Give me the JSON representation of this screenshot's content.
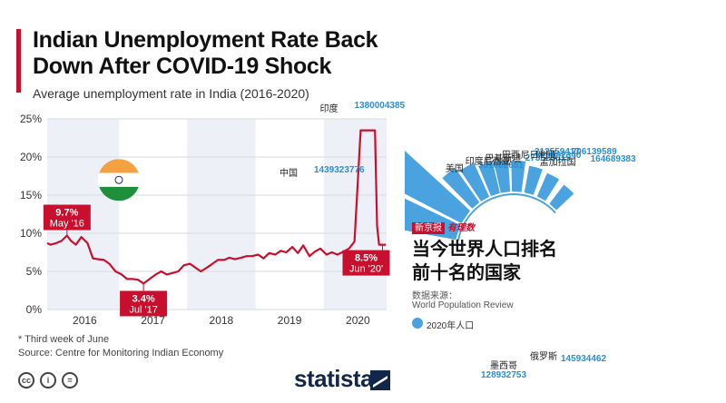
{
  "left_panel": {
    "title": "Indian Unemployment Rate Back Down After COVID-19 Shock",
    "subtitle": "Average unemployment rate in India (2016-2020)",
    "note": "* Third week of June",
    "source": "Source: Centre for Monitoring Indian Economy",
    "license_icons": [
      {
        "name": "cc-icon",
        "glyph": "cc"
      },
      {
        "name": "attribution-icon",
        "glyph": "i"
      },
      {
        "name": "noderivs-icon",
        "glyph": "="
      }
    ],
    "brand": "statista",
    "flag_colors": {
      "saffron": "#f4a142",
      "white": "#ffffff",
      "green": "#1e8f3a",
      "chakra": "#1a2a7a"
    }
  },
  "right_panel": {
    "tag": "新京报",
    "tag_logo": "有理数",
    "headline": "当今世界人口排名前十名的国家",
    "source_label": "数据来源：",
    "source_name": "World Population Review",
    "legend_label": "2020年人口",
    "bar_color": "#4aa3df"
  },
  "chart_data": [
    {
      "type": "line",
      "title": "Indian Unemployment Rate Back Down After COVID-19 Shock",
      "subtitle": "Average unemployment rate in India (2016-2020)",
      "ylim": [
        0,
        25
      ],
      "yticks": [
        "0%",
        "5%",
        "10%",
        "15%",
        "20%",
        "25%"
      ],
      "xticks": [
        "2016",
        "2017",
        "2018",
        "2019",
        "2020"
      ],
      "xlim": [
        2015.45,
        2020.42
      ],
      "grid": true,
      "line_color": "#c8102e",
      "series": [
        {
          "x": [
            2015.45,
            2015.5,
            2015.58,
            2015.66,
            2015.74,
            2015.8,
            2015.87,
            2015.95,
            2016.04,
            2016.12,
            2016.2,
            2016.28,
            2016.36,
            2016.45,
            2016.54,
            2016.62,
            2016.7,
            2016.78,
            2016.86,
            2016.95,
            2017.04,
            2017.12,
            2017.2,
            2017.29,
            2017.37,
            2017.45,
            2017.54,
            2017.62,
            2017.7,
            2017.79,
            2017.87,
            2017.95,
            2018.04,
            2018.12,
            2018.2,
            2018.29,
            2018.37,
            2018.45,
            2018.54,
            2018.62,
            2018.7,
            2018.79,
            2018.87,
            2018.95,
            2019.04,
            2019.12,
            2019.2,
            2019.29,
            2019.37,
            2019.45,
            2019.54,
            2019.62,
            2019.7,
            2019.79,
            2019.87,
            2019.95,
            2020.04,
            2020.12,
            2020.2,
            2020.25,
            2020.28,
            2020.31,
            2020.36,
            2020.41
          ],
          "values": [
            8.7,
            8.5,
            8.7,
            9.0,
            9.7,
            9.0,
            8.5,
            9.5,
            8.7,
            6.7,
            6.6,
            6.5,
            6.0,
            5.0,
            4.6,
            4.0,
            4.0,
            3.9,
            3.4,
            4.0,
            4.6,
            5.0,
            4.6,
            4.8,
            5.0,
            5.8,
            6.0,
            5.5,
            5.0,
            5.5,
            6.0,
            6.5,
            6.5,
            6.8,
            6.6,
            6.8,
            7.0,
            7.0,
            7.2,
            6.7,
            7.4,
            7.2,
            7.7,
            7.5,
            8.2,
            7.4,
            8.4,
            7.0,
            7.6,
            8.0,
            7.2,
            7.5,
            7.2,
            7.6,
            8.0,
            8.9,
            23.5,
            23.5,
            23.5,
            23.5,
            11.0,
            8.5,
            8.5,
            8.5
          ]
        }
      ],
      "annotations": [
        {
          "label": "9.7%",
          "sublabel": "May '16",
          "x": 2015.74,
          "y": 9.7
        },
        {
          "label": "3.4%",
          "sublabel": "Jul '17",
          "x": 2016.86,
          "y": 3.4
        },
        {
          "label": "8.5%",
          "sublabel": "Jun '20'",
          "x": 2020.36,
          "y": 8.5
        }
      ]
    },
    {
      "type": "bar",
      "layout": "radial",
      "categories": [
        "中国",
        "印度",
        "美国",
        "印度尼西亚",
        "巴基斯坦",
        "巴西",
        "尼日利亚",
        "孟加拉国",
        "俄罗斯",
        "墨西哥"
      ],
      "values": [
        1439323776,
        1380004385,
        331002651,
        273523615,
        220892340,
        212559417,
        206139589,
        164689383,
        145934462,
        128932753
      ],
      "value_labels": [
        "1439323776",
        "1380004385",
        "331002651",
        "273523615",
        "220892340",
        "212559417",
        "206139589",
        "164689383",
        "145934462",
        "128932753"
      ],
      "series_label": "2020年人口"
    }
  ]
}
